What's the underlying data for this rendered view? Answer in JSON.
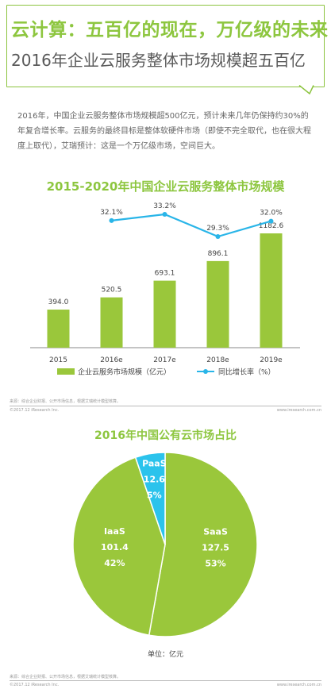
{
  "header": {
    "title_main": "云计算：五百亿的现在，万亿级的未来",
    "title_sub": "2016年企业云服务整体市场规模超五百亿"
  },
  "intro": "2016年，中国企业云服务整体市场规模超500亿元，预计未来几年仍保持约30%的年复合增长率。云服务的最终目标是整体软硬件市场（即使不完全取代，也在很大程度上取代），艾瑞预计：这是一个万亿级市场，空间巨大。",
  "colors": {
    "green": "#9ac73b",
    "blue": "#29b5e8",
    "cyan": "#2bc3ec",
    "title_green": "#8dc63f"
  },
  "chart_data": [
    {
      "type": "bar",
      "title": "2015-2020年中国企业云服务整体市场规模",
      "categories": [
        "2015",
        "2016e",
        "2017e",
        "2018e",
        "2019e"
      ],
      "series": [
        {
          "name": "企业云服务市场规模（亿元）",
          "type": "bar",
          "values": [
            394.0,
            520.5,
            693.1,
            896.1,
            1182.6
          ],
          "labels": [
            "394.0",
            "520.5",
            "693.1",
            "896.1",
            "1182.6"
          ]
        },
        {
          "name": "同比增长率（%）",
          "type": "line",
          "values": [
            null,
            32.1,
            33.2,
            29.3,
            32.0
          ],
          "labels": [
            "",
            "32.1%",
            "33.2%",
            "29.3%",
            "32.0%"
          ]
        }
      ],
      "legend": "bottom",
      "grid": false
    },
    {
      "type": "pie",
      "title": "2016年中国公有云市场占比",
      "slices": [
        {
          "name": "SaaS",
          "value": 127.5,
          "value_label": "127.5",
          "percent": 53,
          "percent_label": "53%"
        },
        {
          "name": "IaaS",
          "value": 101.4,
          "value_label": "101.4",
          "percent": 42,
          "percent_label": "42%"
        },
        {
          "name": "PaaS",
          "value": 12.6,
          "value_label": "12.6",
          "percent": 5,
          "percent_label": "5%"
        }
      ],
      "unit_label": "单位：亿元"
    }
  ],
  "footer": {
    "source1": "来源：综合企业财报、公开市场信息，根据艾瑞统计模型核算。",
    "left1": "©2017.12 iResearch Inc.",
    "right1": "www.iresearch.com.cn",
    "source2": "来源：综合企业财报、公开市场信息，根据艾瑞统计模型核算。",
    "left2": "©2017.12 iResearch Inc.",
    "right2": "www.iresearch.com.cn"
  }
}
